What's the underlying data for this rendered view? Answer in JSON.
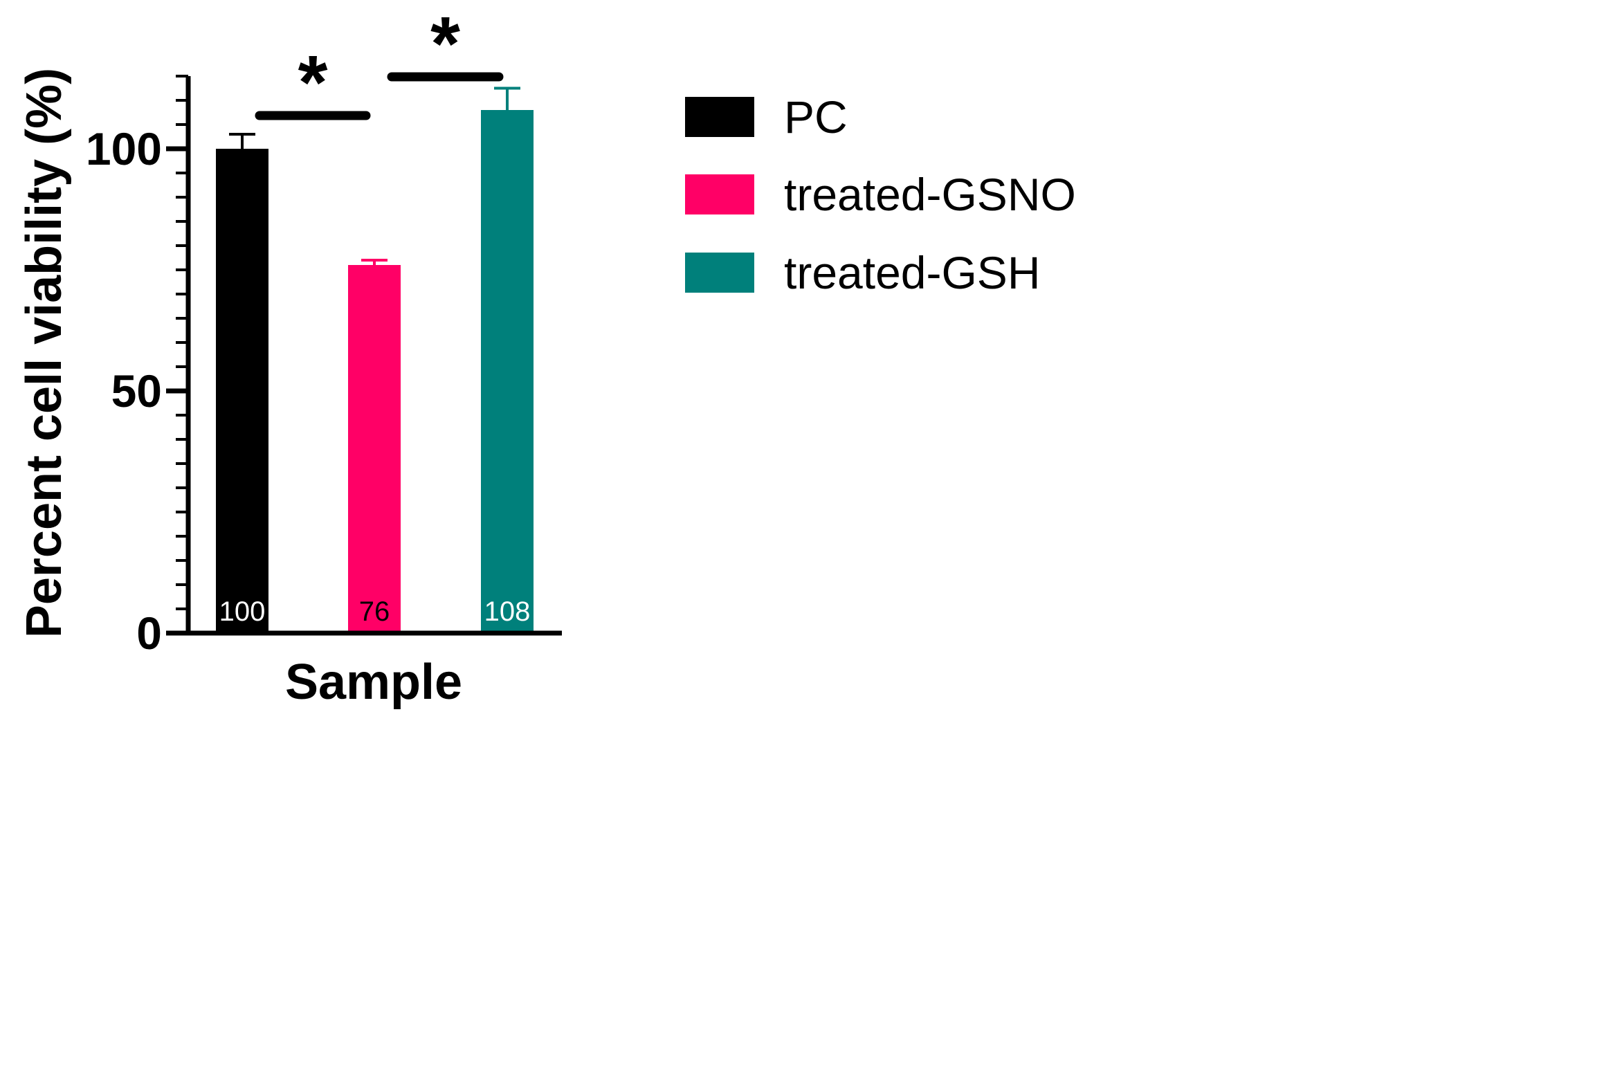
{
  "chart_data": {
    "type": "bar",
    "categories": [
      "PC",
      "treated-GSNO",
      "treated-GSH"
    ],
    "values": [
      100,
      76,
      108
    ],
    "errors": [
      3,
      1,
      4.5
    ],
    "data_labels": [
      "100",
      "76",
      "108"
    ],
    "colors": [
      "#000000",
      "#ff0066",
      "#00807b"
    ],
    "data_label_colors": [
      "#ffffff",
      "#000000",
      "#ffffff"
    ],
    "xlabel": "Sample",
    "ylabel": "Percent cell viability (%)",
    "ylim": [
      0,
      115
    ],
    "yticks_major": [
      0,
      50,
      100
    ],
    "ytick_labels": [
      "0",
      "50",
      "100"
    ],
    "yticks_minor_step": 5,
    "grid": false,
    "legend": {
      "placement": "right",
      "entries": [
        "PC",
        "treated-GSNO",
        "treated-GSH"
      ]
    },
    "significance": [
      {
        "from": 0,
        "to": 1,
        "label": "*",
        "level": 107
      },
      {
        "from": 1,
        "to": 2,
        "label": "*",
        "level": 115
      }
    ]
  }
}
